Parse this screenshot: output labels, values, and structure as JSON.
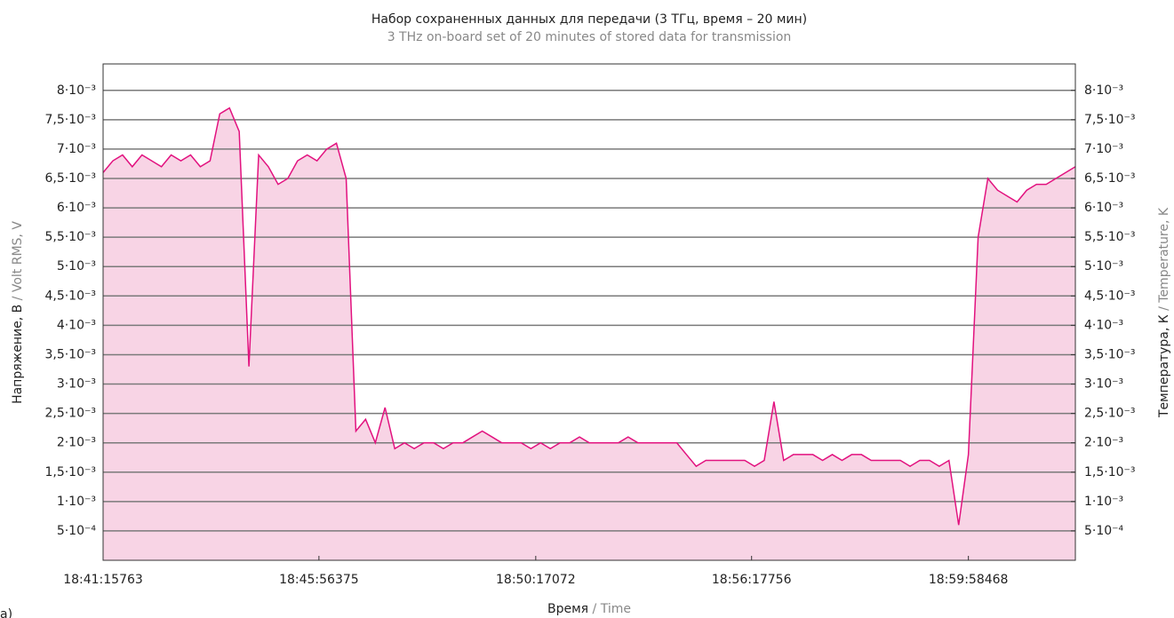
{
  "chart_data": {
    "type": "area",
    "title": "Набор сохраненных данных для передачи (3 ТГц, время – 20 мин)",
    "subtitle": "3 THz on-board set of 20 minutes of stored data for transmission",
    "y_label": "Напряжение, В",
    "y_label_en": "/ Volt RMS, V",
    "y2_label": "Температура, К",
    "y2_label_en": "/ Temperature, K",
    "x_label": "Время",
    "x_label_en": "/ Time",
    "annotation": "а)",
    "grid": true,
    "xlim": [
      0,
      1000
    ],
    "xticks": [
      {
        "value": 0,
        "label": "18:41:15763"
      },
      {
        "value": 222,
        "label": "18:45:56375"
      },
      {
        "value": 445,
        "label": "18:50:17072"
      },
      {
        "value": 667,
        "label": "18:56:17756"
      },
      {
        "value": 890,
        "label": "18:59:58468"
      }
    ],
    "ylim": [
      0,
      0.00845
    ],
    "yticks": [
      {
        "value": 0.0005,
        "label": "5·10⁻⁴"
      },
      {
        "value": 0.001,
        "label": "1·10⁻³"
      },
      {
        "value": 0.0015,
        "label": "1,5·10⁻³"
      },
      {
        "value": 0.002,
        "label": "2·10⁻³"
      },
      {
        "value": 0.0025,
        "label": "2,5·10⁻³"
      },
      {
        "value": 0.003,
        "label": "3·10⁻³"
      },
      {
        "value": 0.0035,
        "label": "3,5·10⁻³"
      },
      {
        "value": 0.004,
        "label": "4·10⁻³"
      },
      {
        "value": 0.0045,
        "label": "4,5·10⁻³"
      },
      {
        "value": 0.005,
        "label": "5·10⁻³"
      },
      {
        "value": 0.0055,
        "label": "5,5·10⁻³"
      },
      {
        "value": 0.006,
        "label": "6·10⁻³"
      },
      {
        "value": 0.0065,
        "label": "6,5·10⁻³"
      },
      {
        "value": 0.007,
        "label": "7·10⁻³"
      },
      {
        "value": 0.0075,
        "label": "7,5·10⁻³"
      },
      {
        "value": 0.008,
        "label": "8·10⁻³"
      }
    ],
    "y2lim": [
      0,
      0.00845
    ],
    "y2ticks": [
      {
        "value": 0.0005,
        "label": "5·10⁻⁴"
      },
      {
        "value": 0.001,
        "label": "1·10⁻³"
      },
      {
        "value": 0.0015,
        "label": "1,5·10⁻³"
      },
      {
        "value": 0.002,
        "label": "2·10⁻³"
      },
      {
        "value": 0.0025,
        "label": "2,5·10⁻³"
      },
      {
        "value": 0.003,
        "label": "3·10⁻³"
      },
      {
        "value": 0.0035,
        "label": "3,5·10⁻³"
      },
      {
        "value": 0.004,
        "label": "4·10⁻³"
      },
      {
        "value": 0.0045,
        "label": "4,5·10⁻³"
      },
      {
        "value": 0.005,
        "label": "5·10⁻³"
      },
      {
        "value": 0.0055,
        "label": "5,5·10⁻³"
      },
      {
        "value": 0.006,
        "label": "6·10⁻³"
      },
      {
        "value": 0.0065,
        "label": "6,5·10⁻³"
      },
      {
        "value": 0.007,
        "label": "7·10⁻³"
      },
      {
        "value": 0.0075,
        "label": "7,5·10⁻³"
      },
      {
        "value": 0.008,
        "label": "8·10⁻³"
      }
    ],
    "x": [
      0,
      10,
      20,
      30,
      40,
      50,
      60,
      70,
      80,
      90,
      100,
      110,
      120,
      130,
      140,
      150,
      160,
      170,
      180,
      190,
      200,
      210,
      220,
      230,
      240,
      250,
      260,
      270,
      280,
      290,
      300,
      310,
      320,
      330,
      340,
      350,
      360,
      370,
      380,
      390,
      400,
      410,
      420,
      430,
      440,
      450,
      460,
      470,
      480,
      490,
      500,
      510,
      520,
      530,
      540,
      550,
      560,
      570,
      580,
      590,
      600,
      610,
      620,
      630,
      640,
      650,
      660,
      670,
      680,
      690,
      700,
      710,
      720,
      730,
      740,
      750,
      760,
      770,
      780,
      790,
      800,
      810,
      820,
      830,
      840,
      850,
      860,
      870,
      880,
      890,
      900,
      910,
      920,
      930,
      940,
      950,
      960,
      970,
      980,
      990,
      1000
    ],
    "series": [
      {
        "color": "#e2127f",
        "fill": "#f8d4e5",
        "values": [
          0.0066,
          0.0068,
          0.0069,
          0.0067,
          0.0069,
          0.0068,
          0.0067,
          0.0069,
          0.0068,
          0.0069,
          0.0067,
          0.0068,
          0.0076,
          0.0077,
          0.0073,
          0.0033,
          0.0069,
          0.0067,
          0.0064,
          0.0065,
          0.0068,
          0.0069,
          0.0068,
          0.007,
          0.0071,
          0.0065,
          0.0022,
          0.0024,
          0.002,
          0.0026,
          0.0019,
          0.002,
          0.0019,
          0.002,
          0.002,
          0.0019,
          0.002,
          0.002,
          0.0021,
          0.0022,
          0.0021,
          0.002,
          0.002,
          0.002,
          0.0019,
          0.002,
          0.0019,
          0.002,
          0.002,
          0.0021,
          0.002,
          0.002,
          0.002,
          0.002,
          0.0021,
          0.002,
          0.002,
          0.002,
          0.002,
          0.002,
          0.0018,
          0.0016,
          0.0017,
          0.0017,
          0.0017,
          0.0017,
          0.0017,
          0.0016,
          0.0017,
          0.0027,
          0.0017,
          0.0018,
          0.0018,
          0.0018,
          0.0017,
          0.0018,
          0.0017,
          0.0018,
          0.0018,
          0.0017,
          0.0017,
          0.0017,
          0.0017,
          0.0016,
          0.0017,
          0.0017,
          0.0016,
          0.0017,
          0.0006,
          0.0018,
          0.0055,
          0.0065,
          0.0063,
          0.0062,
          0.0061,
          0.0063,
          0.0064,
          0.0064,
          0.0065,
          0.0066,
          0.0067
        ]
      }
    ]
  }
}
